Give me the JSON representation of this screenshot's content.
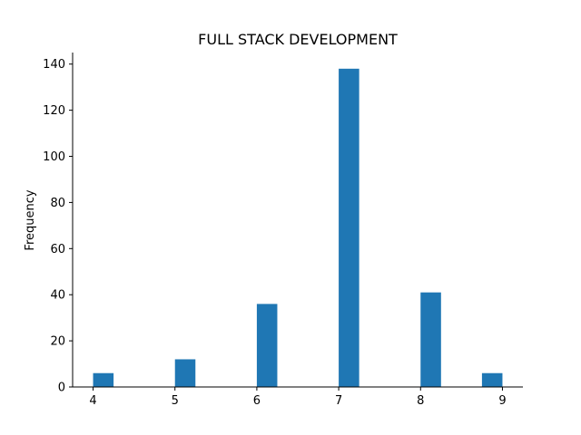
{
  "chart_data": {
    "type": "bar",
    "title": "FULL STACK DEVELOPMENT",
    "xlabel": "",
    "ylabel": "Frequency",
    "x_ticks": [
      4,
      5,
      6,
      7,
      8,
      9
    ],
    "y_ticks": [
      0,
      20,
      40,
      60,
      80,
      100,
      120,
      140
    ],
    "xlim": [
      3.75,
      9.25
    ],
    "ylim": [
      0,
      145
    ],
    "bins": [
      {
        "x0": 4.0,
        "x1": 4.25,
        "value": 6
      },
      {
        "x0": 5.0,
        "x1": 5.25,
        "value": 12
      },
      {
        "x0": 6.0,
        "x1": 6.25,
        "value": 36
      },
      {
        "x0": 7.0,
        "x1": 7.25,
        "value": 138
      },
      {
        "x0": 8.0,
        "x1": 8.25,
        "value": 41
      },
      {
        "x0": 8.75,
        "x1": 9.0,
        "value": 6
      }
    ],
    "bar_color": "#1f77b4",
    "grid": false,
    "spines": [
      "left",
      "bottom"
    ]
  }
}
